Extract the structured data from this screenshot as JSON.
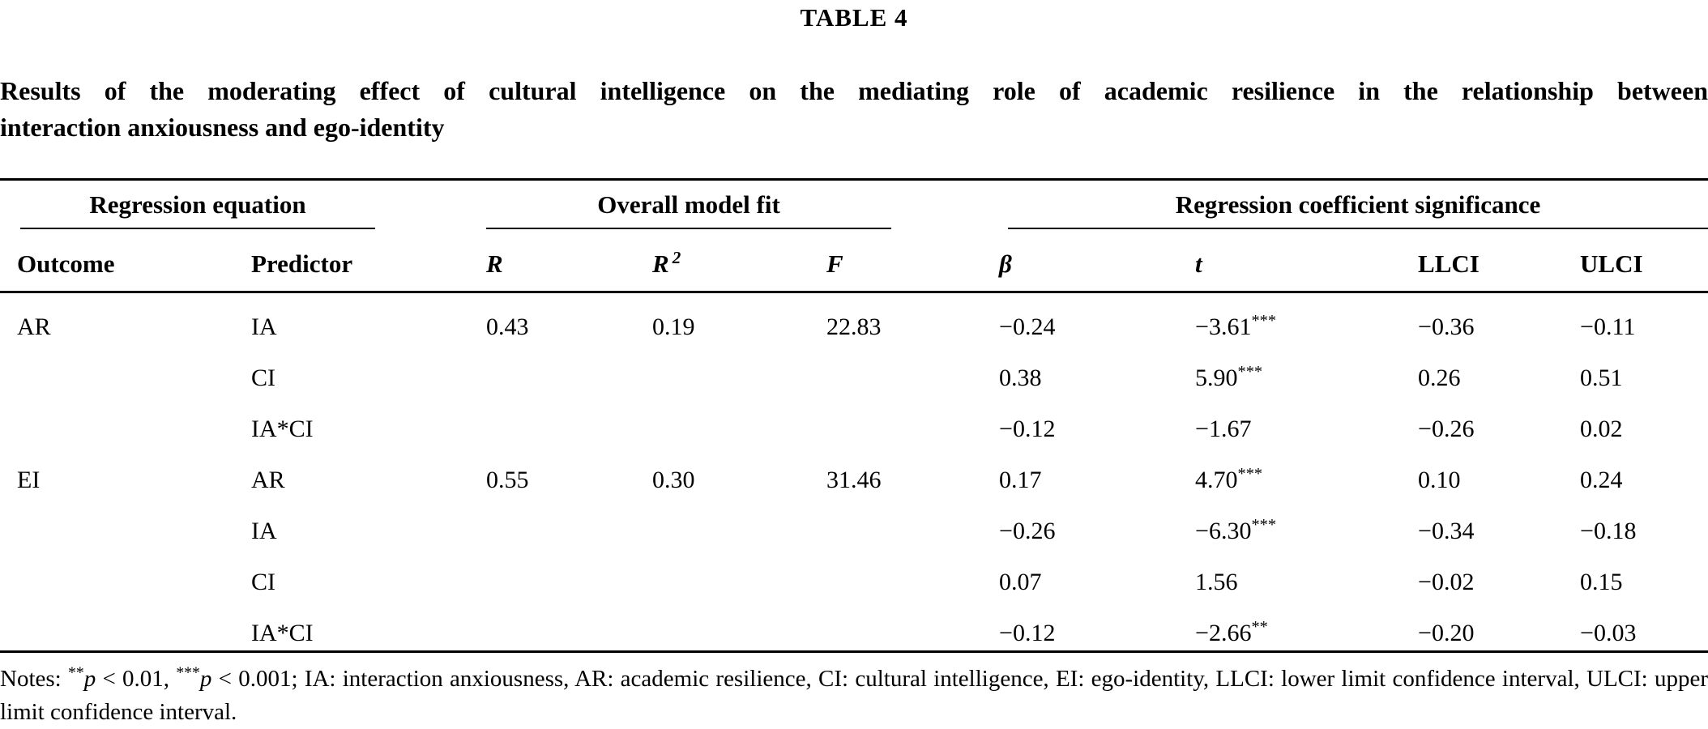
{
  "caption": "TABLE 4",
  "title": {
    "line1": "Results of the moderating effect of cultural intelligence on the mediating role of academic resilience in the relationship between",
    "line2": "interaction anxiousness and ego-identity"
  },
  "table": {
    "groups": [
      {
        "label": "Regression equation"
      },
      {
        "label": "Overall model fit"
      },
      {
        "label": "Regression coefficient significance"
      }
    ],
    "columns": [
      {
        "key": "outcome",
        "label": "Outcome",
        "italic": false
      },
      {
        "key": "predictor",
        "label": "Predictor",
        "italic": false
      },
      {
        "key": "r",
        "label": "R",
        "italic": true
      },
      {
        "key": "r2",
        "label": "R",
        "sup": "2",
        "italic": true
      },
      {
        "key": "f",
        "label": "F",
        "italic": true
      },
      {
        "key": "beta",
        "label": "β",
        "italic": true
      },
      {
        "key": "t",
        "label": "t",
        "italic": true
      },
      {
        "key": "llci",
        "label": "LLCI",
        "italic": false
      },
      {
        "key": "ulci",
        "label": "ULCI",
        "italic": false
      }
    ],
    "rows": [
      {
        "outcome": "AR",
        "predictor": "IA",
        "r": "0.43",
        "r2": "0.19",
        "f": "22.83",
        "beta": "−0.24",
        "t": "−3.61",
        "t_stars": "***",
        "llci": "−0.36",
        "ulci": "−0.11"
      },
      {
        "outcome": "",
        "predictor": "CI",
        "r": "",
        "r2": "",
        "f": "",
        "beta": "0.38",
        "t": "5.90",
        "t_stars": "***",
        "llci": "0.26",
        "ulci": "0.51"
      },
      {
        "outcome": "",
        "predictor": "IA*CI",
        "r": "",
        "r2": "",
        "f": "",
        "beta": "−0.12",
        "t": "−1.67",
        "t_stars": "",
        "llci": "−0.26",
        "ulci": "0.02"
      },
      {
        "outcome": "EI",
        "predictor": "AR",
        "r": "0.55",
        "r2": "0.30",
        "f": "31.46",
        "beta": "0.17",
        "t": "4.70",
        "t_stars": "***",
        "llci": "0.10",
        "ulci": "0.24"
      },
      {
        "outcome": "",
        "predictor": "IA",
        "r": "",
        "r2": "",
        "f": "",
        "beta": "−0.26",
        "t": "−6.30",
        "t_stars": "***",
        "llci": "−0.34",
        "ulci": "−0.18"
      },
      {
        "outcome": "",
        "predictor": "CI",
        "r": "",
        "r2": "",
        "f": "",
        "beta": "0.07",
        "t": "1.56",
        "t_stars": "",
        "llci": "−0.02",
        "ulci": "0.15"
      },
      {
        "outcome": "",
        "predictor": "IA*CI",
        "r": "",
        "r2": "",
        "f": "",
        "beta": "−0.12",
        "t": "−2.66",
        "t_stars": "**",
        "llci": "−0.20",
        "ulci": "−0.03"
      }
    ]
  },
  "notes": {
    "segments": [
      {
        "text": "Notes: ",
        "style": "normal"
      },
      {
        "text": "**",
        "style": "sup"
      },
      {
        "text": "p",
        "style": "italic"
      },
      {
        "text": " < 0.01, ",
        "style": "normal"
      },
      {
        "text": "***",
        "style": "sup"
      },
      {
        "text": "p",
        "style": "italic"
      },
      {
        "text": " < 0.001; IA: interaction anxiousness, AR: academic resilience, CI: cultural intelligence, EI: ego-identity, LLCI: lower limit confidence interval, ULCI: upper limit confidence interval.",
        "style": "normal"
      }
    ]
  }
}
